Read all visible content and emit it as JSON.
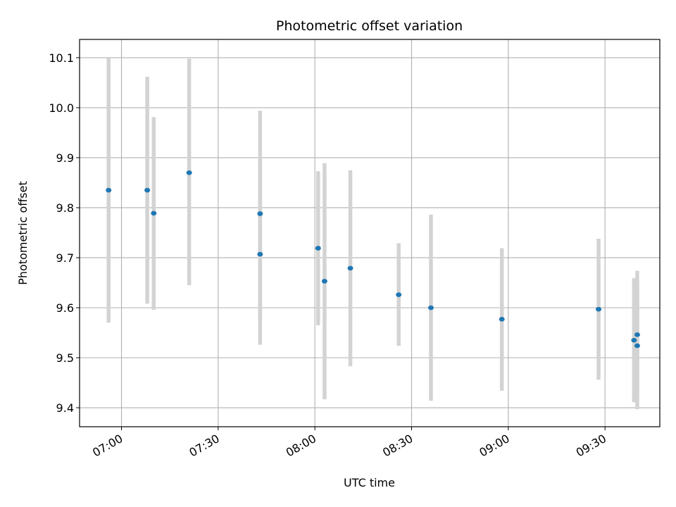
{
  "chart_data": {
    "type": "scatter",
    "title": "Photometric offset variation",
    "xlabel": "UTC time",
    "ylabel": "Photometric offset",
    "x_ticks": [
      "07:00",
      "07:30",
      "08:00",
      "08:30",
      "09:00",
      "09:30"
    ],
    "y_ticks": [
      "9.4",
      "9.5",
      "9.6",
      "9.7",
      "9.8",
      "9.9",
      "10.0",
      "10.1"
    ],
    "xlim": [
      "06:47",
      "09:47"
    ],
    "ylim": [
      9.362,
      10.1365
    ],
    "grid": true,
    "colors": {
      "point": "#1f77b4",
      "errorbar": "#d3d3d3",
      "grid": "#b0b0b0"
    },
    "points": [
      {
        "x": "06:56",
        "y": 9.835,
        "ylow": 9.57,
        "yhigh": 10.1
      },
      {
        "x": "07:08",
        "y": 9.835,
        "ylow": 9.608,
        "yhigh": 10.062
      },
      {
        "x": "07:10",
        "y": 9.789,
        "ylow": 9.596,
        "yhigh": 9.981
      },
      {
        "x": "07:21",
        "y": 9.87,
        "ylow": 9.645,
        "yhigh": 10.098
      },
      {
        "x": "07:43",
        "y": 9.707,
        "ylow": 9.526,
        "yhigh": 9.888
      },
      {
        "x": "07:43",
        "y": 9.788,
        "ylow": 9.582,
        "yhigh": 9.994
      },
      {
        "x": "08:01",
        "y": 9.719,
        "ylow": 9.565,
        "yhigh": 9.873
      },
      {
        "x": "08:03",
        "y": 9.653,
        "ylow": 9.417,
        "yhigh": 9.889
      },
      {
        "x": "08:11",
        "y": 9.679,
        "ylow": 9.483,
        "yhigh": 9.875
      },
      {
        "x": "08:26",
        "y": 9.626,
        "ylow": 9.524,
        "yhigh": 9.729
      },
      {
        "x": "08:36",
        "y": 9.6,
        "ylow": 9.414,
        "yhigh": 9.786
      },
      {
        "x": "08:58",
        "y": 9.577,
        "ylow": 9.434,
        "yhigh": 9.719
      },
      {
        "x": "09:28",
        "y": 9.597,
        "ylow": 9.456,
        "yhigh": 9.738
      },
      {
        "x": "09:39",
        "y": 9.535,
        "ylow": 9.411,
        "yhigh": 9.659
      },
      {
        "x": "09:40",
        "y": 9.524,
        "ylow": 9.397,
        "yhigh": 9.652
      },
      {
        "x": "09:40",
        "y": 9.546,
        "ylow": 9.419,
        "yhigh": 9.674
      }
    ]
  }
}
